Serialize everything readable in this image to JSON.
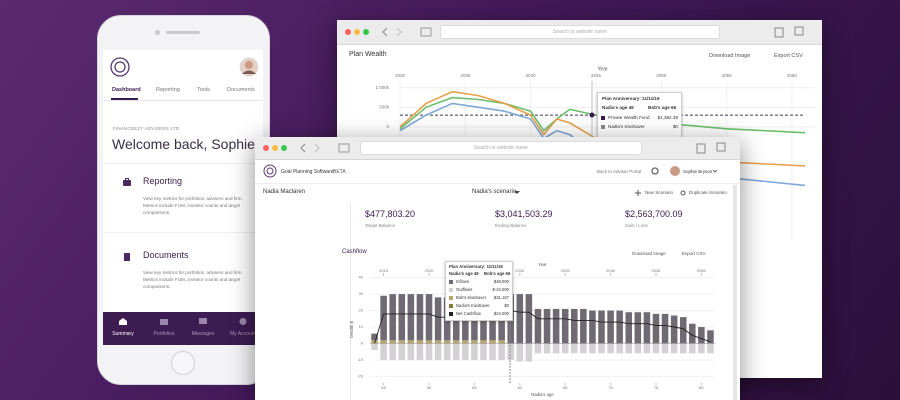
{
  "phone": {
    "company": "FINANCEEZY ADVISERS LTD.",
    "welcome": "Welcome back, Sophie",
    "tabs": [
      "Dashboard",
      "Reporting",
      "Tools",
      "Documents"
    ],
    "sections": [
      {
        "title": "Reporting",
        "description": "View key metrics for portfolios, advisers and firm. Metrics include FUM, investor counts and target comparisons."
      },
      {
        "title": "Documents",
        "description": "View key metrics for portfolios, advisers and firm. Metrics include FUM, investor counts and target comparisons."
      }
    ],
    "nav": [
      "Summary",
      "Portfolios",
      "Messages",
      "My Account"
    ]
  },
  "back_browser": {
    "search_placeholder": "Search or website name",
    "title": "Plan Wealth",
    "actions": [
      "Download Image",
      "Export CSV"
    ],
    "chart_data": {
      "type": "line",
      "x_label": "Year",
      "x": [
        2030,
        2032,
        2034,
        2036,
        2038,
        2040,
        2041,
        2042,
        2043,
        2045,
        2047,
        2050,
        2055,
        2061
      ],
      "xlim": [
        2030,
        2061
      ],
      "xticks": [
        2030,
        2035,
        2040,
        2045,
        2050,
        2055,
        2060
      ],
      "ylim": [
        -2900000,
        1200000
      ],
      "yticks": [
        {
          "value": 1000000,
          "label": "1 000k"
        },
        {
          "value": 500000,
          "label": "500k"
        },
        0
      ],
      "target": 300000,
      "series": [
        {
          "color": "#6cbf6a",
          "values": [
            -50000,
            500000,
            750000,
            700000,
            600000,
            400000,
            -100000,
            200000,
            450000,
            300000,
            150000,
            100000,
            -50000,
            -150000
          ]
        },
        {
          "color": "#e8a04a",
          "values": [
            0,
            600000,
            900000,
            800000,
            600000,
            300000,
            -200000,
            200000,
            100000,
            -300000,
            -500000,
            -800000,
            -900000,
            -1000000
          ]
        },
        {
          "color": "#7fa8d6",
          "values": [
            -100000,
            300000,
            600000,
            500000,
            400000,
            200000,
            -300000,
            -100000,
            -200000,
            -700000,
            -900000,
            -1200000,
            -1300000,
            -1500000
          ]
        }
      ],
      "tooltip": {
        "title": "Plan Anniversary: 11/11/19",
        "left": "Nadia's age 49",
        "right": "Bob's age 66",
        "rows": [
          {
            "label": "Private Wealth Fund",
            "value": "$1,382.39",
            "color": "#3b1b4f"
          },
          {
            "label": "Nadia's KiwiSaver",
            "value": "$0",
            "color": "#888888"
          }
        ]
      }
    }
  },
  "front_browser": {
    "search_placeholder": "Search or website name",
    "app_name": "Goal Planning Software",
    "badge": "BETA",
    "back_link": "Back to Adviser Portal",
    "user": "Sophie Bryson",
    "client": "Nadia Maclaren",
    "scenario": "Nadia's scenario",
    "buttons": [
      "New Scenario",
      "Duplicate Scenario"
    ],
    "stats": [
      {
        "value": "$477,803.20",
        "label": "Target Balance"
      },
      {
        "value": "$3,041,503.29",
        "label": "Ending Balance"
      },
      {
        "value": "$2,563,700.09",
        "label": "Gain / Loss"
      }
    ],
    "cashflow": {
      "title": "Cashflow",
      "actions": [
        "Download Image",
        "Export CSV"
      ],
      "chart_data": {
        "type": "bar",
        "x_label": "Nadia's age",
        "x2_label": "Year",
        "y_label": "Wealth $",
        "x": [
          44,
          45,
          46,
          47,
          48,
          49,
          50,
          51,
          52,
          53,
          54,
          55,
          56,
          57,
          58,
          59,
          60,
          61,
          62,
          63,
          64,
          65,
          66,
          67,
          68,
          69,
          70,
          71,
          72,
          73,
          74,
          75,
          76,
          77,
          78,
          79,
          80,
          81
        ],
        "xlim": [
          43.5,
          81.5
        ],
        "xticks": [
          45,
          50,
          55,
          60,
          65,
          70,
          75,
          80
        ],
        "x2ticks": [
          {
            "value": 45,
            "label": "2015"
          },
          {
            "value": 50,
            "label": "2020"
          },
          {
            "value": 55,
            "label": "2025"
          },
          {
            "value": 60,
            "label": "2030"
          },
          {
            "value": 65,
            "label": "2035"
          },
          {
            "value": 70,
            "label": "2040"
          },
          {
            "value": 75,
            "label": "2045"
          },
          {
            "value": 80,
            "label": "2050"
          }
        ],
        "ylim": [
          -24,
          41
        ],
        "yticks": [
          -20,
          -10,
          0,
          10,
          20,
          30,
          40
        ],
        "series": [
          {
            "color": "#b5a36a",
            "style": "bar",
            "values": [
              2,
              2,
              2,
              2,
              2,
              2,
              2,
              2,
              2,
              2,
              2,
              2,
              2,
              2,
              2,
              0,
              0,
              0,
              0,
              0,
              0,
              0,
              0,
              0,
              0,
              0,
              0,
              0,
              0,
              0,
              0,
              0,
              0,
              0,
              0,
              0,
              0,
              0
            ]
          },
          {
            "color": "#6f6a74",
            "style": "bar",
            "values": [
              4,
              27,
              28,
              28,
              28,
              28,
              28,
              26,
              26,
              26,
              26,
              26,
              26,
              26,
              26,
              30,
              30,
              30,
              21,
              21,
              21,
              21,
              21,
              21,
              20,
              20,
              20,
              20,
              19,
              19,
              19,
              18,
              18,
              17,
              16,
              12,
              10,
              8
            ]
          },
          {
            "color": "#d4d1d5",
            "style": "bar",
            "values": [
              -4,
              -10,
              -10,
              -10,
              -10,
              -10,
              -10,
              -10,
              -10,
              -10,
              -10,
              -10,
              -10,
              -10,
              -10,
              -10,
              -11,
              -11,
              -6,
              -6,
              -6,
              -6,
              -6,
              -6,
              -6,
              -6,
              -6,
              -6,
              -6,
              -6,
              -6,
              -6,
              -6,
              -6,
              -6,
              -6,
              -6,
              -6
            ]
          },
          {
            "color": "#222222",
            "style": "line",
            "values": [
              0,
              18,
              18,
              18,
              18,
              18,
              18,
              16,
              16,
              16,
              16,
              16,
              16,
              16,
              16,
              20,
              19,
              19,
              15,
              15,
              15,
              15,
              14,
              14,
              14,
              13,
              13,
              13,
              12,
              12,
              12,
              11,
              11,
              10,
              9,
              5,
              3,
              1
            ]
          }
        ],
        "tooltip": {
          "title": "Plan Anniversary: 11/11/19",
          "left": "Nadia's age 49",
          "right": "Bob's age 66",
          "rows": [
            {
              "label": "Inflows",
              "value": "$48,000",
              "color": "#6f6a74"
            },
            {
              "label": "Outflows",
              "value": "$-24,000",
              "color": "#d4d1d5"
            },
            {
              "label": "Bob's KiwiSaver",
              "value": "$31,167",
              "color": "#b5a36a"
            },
            {
              "label": "Nadia's KiwiSaver",
              "value": "$0",
              "color": "#8a7a3a"
            },
            {
              "label": "Net Cashflow",
              "value": "$24,000",
              "color": "#222222"
            }
          ]
        }
      }
    }
  }
}
